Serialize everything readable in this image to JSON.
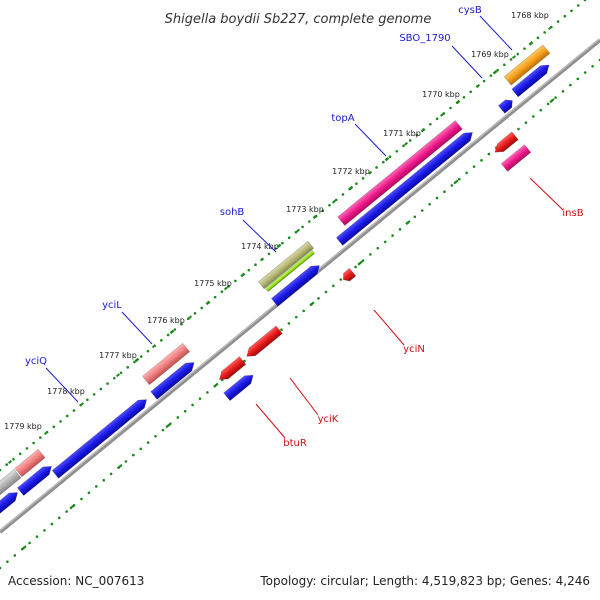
{
  "title": "Shigella boydii Sb227, complete genome",
  "footer": {
    "accession": "Accession: NC_007613",
    "summary": "Topology: circular; Length: 4,519,823 bp; Genes: 4,246"
  },
  "colors": {
    "backbone": "#808080",
    "dots": "#1a8a1a",
    "label_forward": "#1a1acc",
    "label_reverse": "#cc1111",
    "cds": "#1a1ae6",
    "gene_red": "#e61a1a",
    "pink": "#f01a8c",
    "salmon": "#f08080",
    "orange": "#f5a020",
    "olive": "#b8b878",
    "lime": "#9be61a",
    "grey": "#b4b4b4"
  },
  "ticks": [
    {
      "label": "1768 kbp"
    },
    {
      "label": "1769 kbp"
    },
    {
      "label": "1770 kbp"
    },
    {
      "label": "1771 kbp"
    },
    {
      "label": "1772 kbp"
    },
    {
      "label": "1773 kbp"
    },
    {
      "label": "1774 kbp"
    },
    {
      "label": "1775 kbp"
    },
    {
      "label": "1776 kbp"
    },
    {
      "label": "1777 kbp"
    },
    {
      "label": "1778 kbp"
    },
    {
      "label": "1779 kbp"
    }
  ],
  "gene_labels": [
    {
      "name": "cysB",
      "strand": "forward"
    },
    {
      "name": "SBO_1790",
      "strand": "forward"
    },
    {
      "name": "topA",
      "strand": "forward"
    },
    {
      "name": "sohB",
      "strand": "forward"
    },
    {
      "name": "yciL",
      "strand": "forward"
    },
    {
      "name": "yciQ",
      "strand": "forward"
    },
    {
      "name": "insB",
      "strand": "reverse"
    },
    {
      "name": "yciN",
      "strand": "reverse"
    },
    {
      "name": "yciK",
      "strand": "reverse"
    },
    {
      "name": "btuR",
      "strand": "reverse"
    }
  ]
}
